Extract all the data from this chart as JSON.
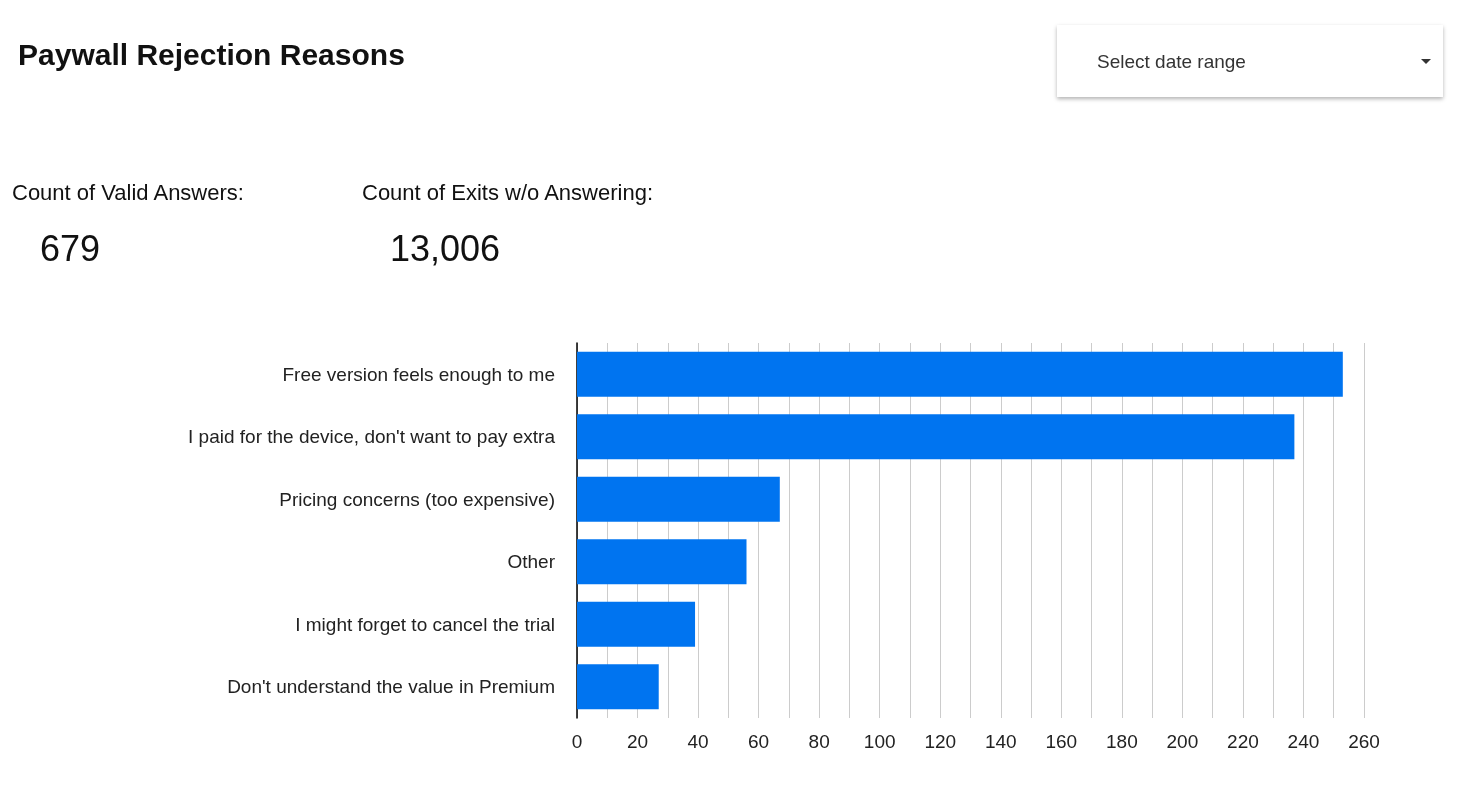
{
  "chart_data": {
    "type": "bar",
    "orientation": "horizontal",
    "title": "Paywall Rejection Reasons",
    "categories": [
      "Free version feels enough to me",
      "I paid for the device, don't want to pay extra",
      "Pricing concerns (too expensive)",
      "Other",
      "I might forget to cancel the trial",
      "Don't understand the value in Premium"
    ],
    "values": [
      253,
      237,
      67,
      56,
      39,
      27
    ],
    "color": "#0074f0",
    "xlim": [
      0,
      260
    ],
    "xticks": [
      0,
      {
        "value": 10,
        "label": null
      },
      20,
      {
        "value": 30,
        "label": null
      },
      40,
      {
        "value": 50,
        "label": null
      },
      60,
      {
        "value": 70,
        "label": null
      },
      80,
      {
        "value": 90,
        "label": null
      },
      100,
      {
        "value": 110,
        "label": null
      },
      120,
      {
        "value": 130,
        "label": null
      },
      140,
      {
        "value": 150,
        "label": null
      },
      160,
      {
        "value": 170,
        "label": null
      },
      180,
      {
        "value": 190,
        "label": null
      },
      200,
      {
        "value": 210,
        "label": null
      },
      220,
      {
        "value": 230,
        "label": null
      },
      240,
      {
        "value": 250,
        "label": null
      },
      260
    ],
    "grid": "x",
    "annotations": [
      "Count of Valid Answers:",
      "679",
      "Count of Exits w/o Answering:",
      "13,006",
      "Select date range"
    ]
  }
}
